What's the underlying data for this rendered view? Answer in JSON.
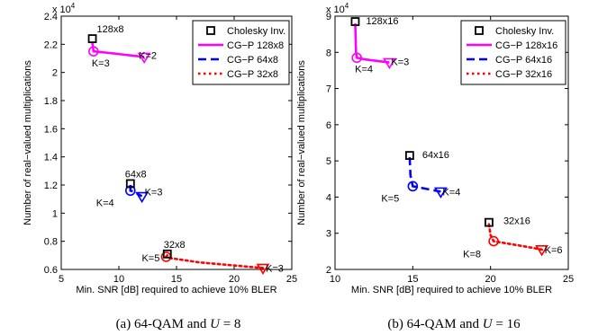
{
  "chart_data": [
    {
      "type": "line",
      "caption": {
        "prefix": "(a) 64-QAM and ",
        "variable": "U",
        "suffix": " = 8"
      },
      "xlabel": "Min. SNR [dB] required to achieve 10% BLER",
      "ylabel": "Number of real−valued multiplications",
      "y_multiplier_label": "x 10",
      "y_multiplier_exp": "4",
      "xlim": [
        5,
        25
      ],
      "ylim": [
        0.6,
        2.4
      ],
      "xticks": [
        5,
        10,
        15,
        20,
        25
      ],
      "yticks": [
        0.6,
        0.8,
        1,
        1.2,
        1.4,
        1.6,
        1.8,
        2,
        2.2,
        2.4
      ],
      "ytick_labels": [
        "0.6",
        "0.8",
        "1",
        "1.2",
        "1.4",
        "1.6",
        "1.8",
        "2",
        "2.2",
        "2.4"
      ],
      "grid": false,
      "legend_position": "top-right",
      "legend": [
        "Cholesky Inv.",
        "CG−P 128x8",
        "CG−P 64x8",
        "CG−P 32x8"
      ],
      "cholesky": [
        {
          "x": 7.7,
          "y": 2.24,
          "label": "128x8"
        },
        {
          "x": 11.0,
          "y": 1.21,
          "label": "64x8"
        },
        {
          "x": 14.2,
          "y": 0.71,
          "label": "32x8"
        }
      ],
      "series": [
        {
          "name": "CG−P 128x8",
          "color": "#ff00ff",
          "dash": "solid",
          "x": [
            7.7,
            7.8,
            9.0,
            12.2
          ],
          "y": [
            2.21,
            2.15,
            2.14,
            2.11
          ],
          "k_points": [
            {
              "x": 7.8,
              "y": 2.15,
              "label": "K=3",
              "marker": "circle"
            },
            {
              "x": 12.2,
              "y": 2.11,
              "label": "K=2",
              "marker": "triangle"
            }
          ]
        },
        {
          "name": "CG−P 64x8",
          "color": "#0000ff",
          "dash": "dashed",
          "x": [
            11.0,
            11.0,
            11.2,
            12.0
          ],
          "y": [
            1.2,
            1.16,
            1.155,
            1.12
          ],
          "k_points": [
            {
              "x": 11.0,
              "y": 1.16,
              "label": "K=4",
              "marker": "circle"
            },
            {
              "x": 12.0,
              "y": 1.12,
              "label": "K=3",
              "marker": "triangle"
            }
          ]
        },
        {
          "name": "CG−P 32x8",
          "color": "#ff0000",
          "dash": "dotted",
          "x": [
            14.2,
            14.1,
            14.5,
            17,
            22.5
          ],
          "y": [
            0.7,
            0.69,
            0.68,
            0.65,
            0.61
          ],
          "k_points": [
            {
              "x": 14.1,
              "y": 0.69,
              "label": "K=5",
              "marker": "circle"
            },
            {
              "x": 22.5,
              "y": 0.61,
              "label": "K=3",
              "marker": "triangle"
            }
          ]
        }
      ]
    },
    {
      "type": "line",
      "caption": {
        "prefix": "(b) 64-QAM and ",
        "variable": "U",
        "suffix": " = 16"
      },
      "xlabel": "Min. SNR [dB] required to achieve 10% BLER",
      "ylabel": "Number of real−valued multiplications",
      "y_multiplier_label": "x 10",
      "y_multiplier_exp": "4",
      "xlim": [
        10,
        25
      ],
      "ylim": [
        2,
        9
      ],
      "xticks": [
        10,
        15,
        20,
        25
      ],
      "yticks": [
        2,
        3,
        4,
        5,
        6,
        7,
        8,
        9
      ],
      "ytick_labels": [
        "2",
        "3",
        "4",
        "5",
        "6",
        "7",
        "8",
        "9"
      ],
      "grid": false,
      "legend_position": "top-right",
      "legend": [
        "Cholesky Inv.",
        "CG−P 128x16",
        "CG−P 64x16",
        "CG−P 32x16"
      ],
      "cholesky": [
        {
          "x": 11.3,
          "y": 8.85,
          "label": "128x16"
        },
        {
          "x": 14.8,
          "y": 5.15,
          "label": "64x16"
        },
        {
          "x": 19.9,
          "y": 3.3,
          "label": "32x16"
        }
      ],
      "series": [
        {
          "name": "CG−P 128x16",
          "color": "#ff00ff",
          "dash": "solid",
          "x": [
            11.3,
            11.35,
            11.4,
            12.0,
            13.5
          ],
          "y": [
            8.8,
            8.0,
            7.85,
            7.8,
            7.72
          ],
          "k_points": [
            {
              "x": 11.4,
              "y": 7.85,
              "label": "K=4",
              "marker": "circle"
            },
            {
              "x": 13.5,
              "y": 7.72,
              "label": "K=3",
              "marker": "triangle"
            }
          ]
        },
        {
          "name": "CG−P 64x16",
          "color": "#0000ff",
          "dash": "dashed",
          "x": [
            14.8,
            14.85,
            15.0,
            16.8
          ],
          "y": [
            5.1,
            4.6,
            4.3,
            4.15
          ],
          "k_points": [
            {
              "x": 15.0,
              "y": 4.3,
              "label": "K=5",
              "marker": "circle"
            },
            {
              "x": 16.8,
              "y": 4.15,
              "label": "K=4",
              "marker": "triangle"
            }
          ]
        },
        {
          "name": "CG−P 32x16",
          "color": "#ff0000",
          "dash": "dotted",
          "x": [
            19.9,
            20.0,
            20.2,
            22.0,
            23.3
          ],
          "y": [
            3.25,
            2.95,
            2.78,
            2.65,
            2.55
          ],
          "k_points": [
            {
              "x": 20.2,
              "y": 2.78,
              "label": "K=8",
              "marker": "circle"
            },
            {
              "x": 23.3,
              "y": 2.55,
              "label": "K=6",
              "marker": "triangle"
            }
          ]
        }
      ]
    }
  ]
}
